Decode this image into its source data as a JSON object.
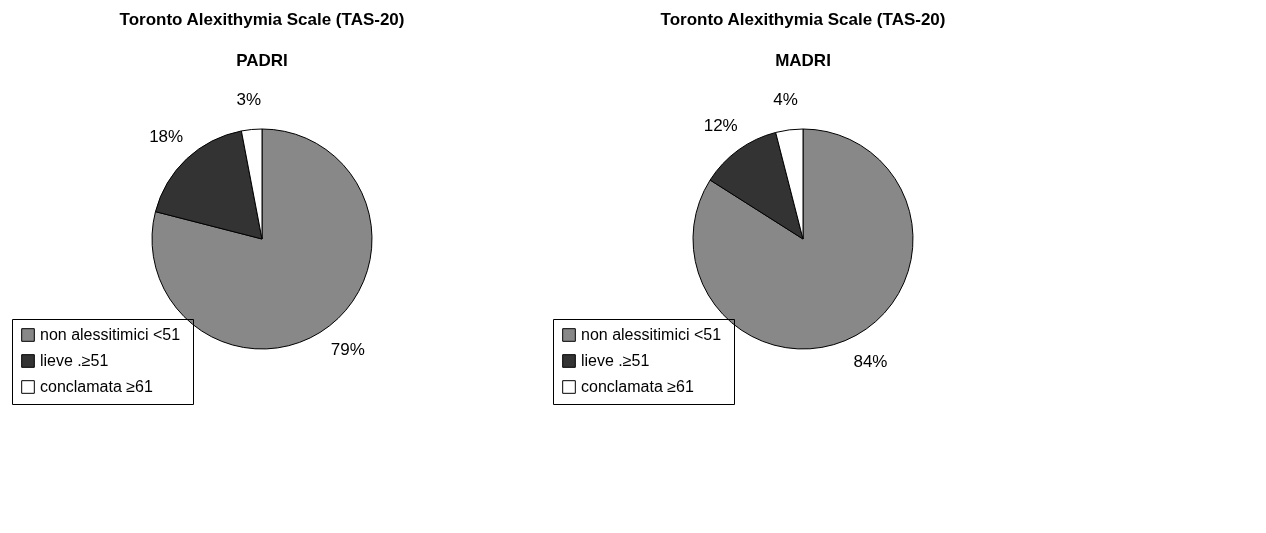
{
  "chart_data": [
    {
      "type": "pie",
      "title": "Toronto Alexithymia Scale (TAS-20)",
      "subtitle": "PADRI",
      "categories": [
        "non alessitimici  <51",
        "lieve  .≥51",
        "conclamata  ≥61"
      ],
      "values": [
        79,
        18,
        3
      ],
      "colors": [
        "#888888",
        "#333333",
        "#ffffff"
      ],
      "value_labels": [
        "79%",
        "18%",
        "3%"
      ],
      "legend": "bottom left"
    },
    {
      "type": "pie",
      "title": "Toronto Alexithymia Scale (TAS-20)",
      "subtitle": "MADRI",
      "categories": [
        "non alessitimici  <51",
        "lieve  .≥51",
        "conclamata  ≥61"
      ],
      "values": [
        84,
        12,
        4
      ],
      "colors": [
        "#888888",
        "#333333",
        "#ffffff"
      ],
      "value_labels": [
        "84%",
        "12%",
        "4%"
      ],
      "legend": "bottom left"
    }
  ]
}
